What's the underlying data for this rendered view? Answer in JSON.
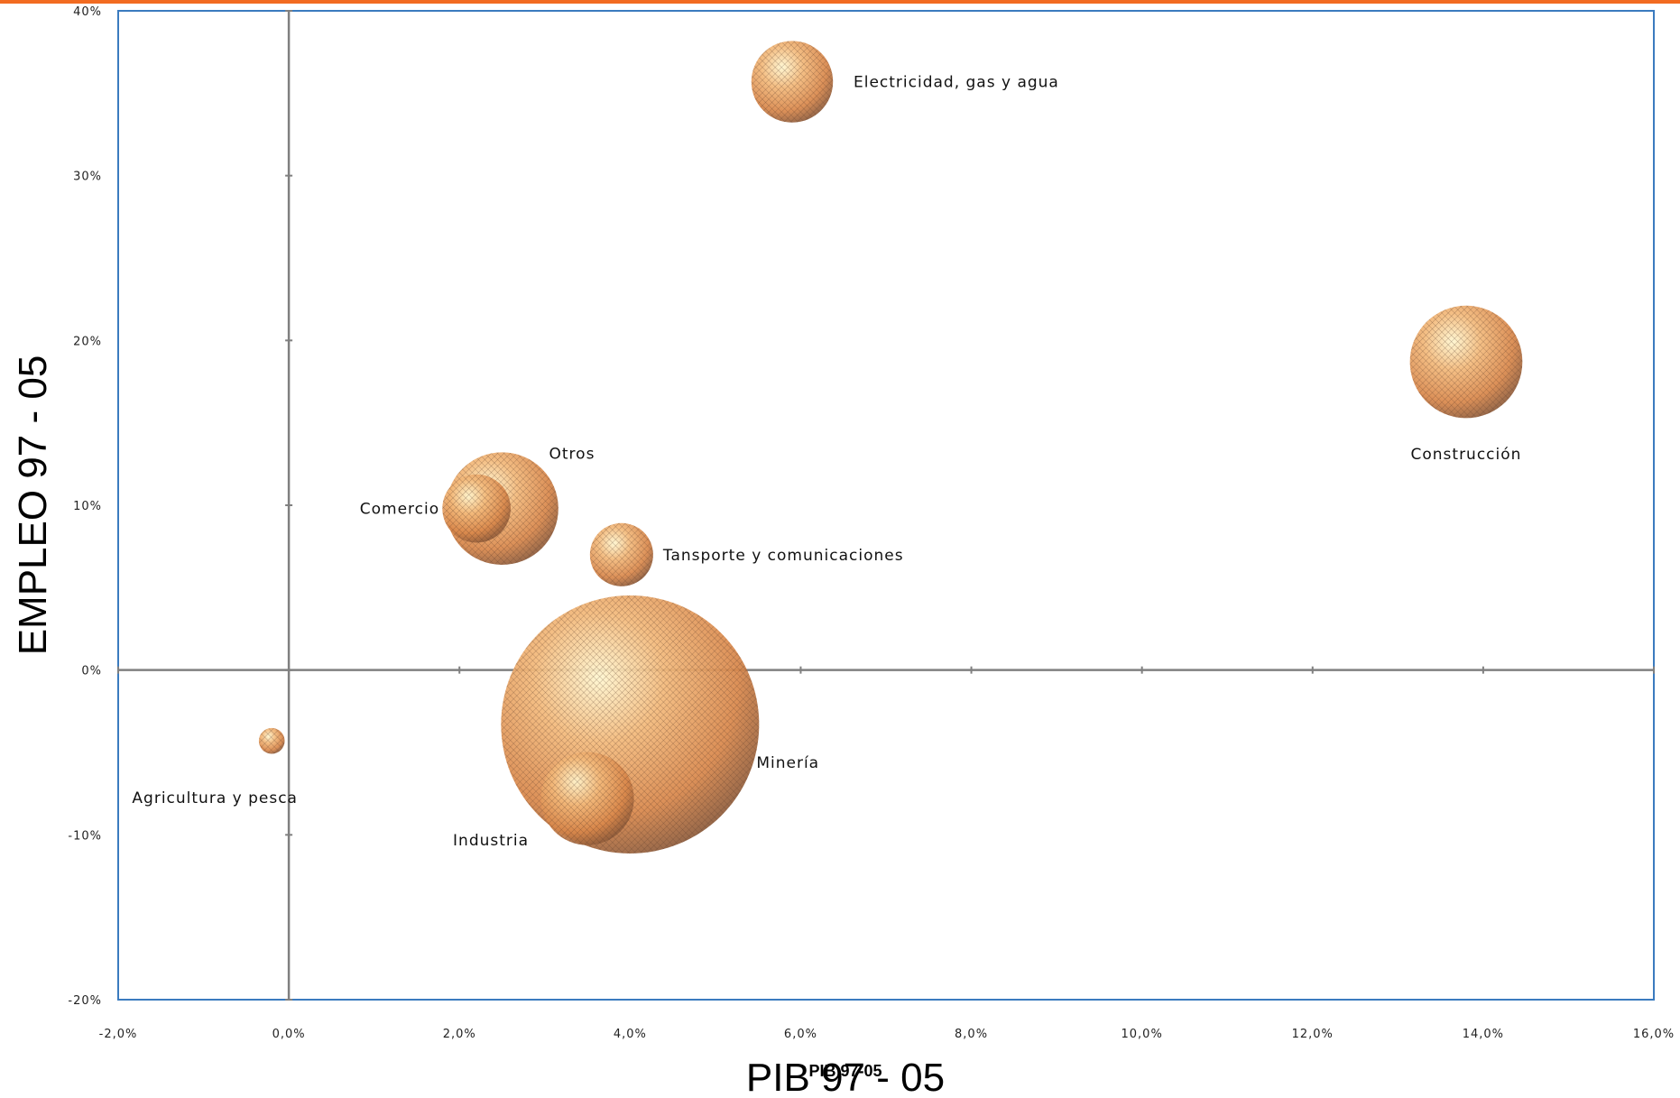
{
  "accent_color": "#f26b21",
  "chart_data": {
    "type": "scatter",
    "subtype": "bubble",
    "xlabel": "PIB 97 - 05",
    "xlabel_small": "PIB 97-05",
    "ylabel": "EMPLEO 97 - 05",
    "xlim": [
      -2.0,
      16.0
    ],
    "ylim": [
      -20,
      40
    ],
    "x_ticks": [
      "-2,0%",
      "0,0%",
      "2,0%",
      "4,0%",
      "6,0%",
      "8,0%",
      "10,0%",
      "12,0%",
      "14,0%",
      "16,0%"
    ],
    "y_ticks": [
      "40%",
      "30%",
      "20%",
      "10%",
      "0%",
      "-10%",
      "-20%"
    ],
    "grid": false,
    "legend": "none",
    "plot_border_color": "#3b7bbf",
    "axis_line_color": "#808080",
    "bubble_color": "#e8893a",
    "points": [
      {
        "label": "Minería",
        "x": 4.0,
        "y": -3.3,
        "size": 100
      },
      {
        "label": "Industria",
        "x": 3.5,
        "y": -7.8,
        "size": 13
      },
      {
        "label": "Agricultura y pesca",
        "x": -0.2,
        "y": -4.3,
        "size": 1
      },
      {
        "label": "Comercio",
        "x": 2.2,
        "y": 9.8,
        "size": 7
      },
      {
        "label": "Otros",
        "x": 2.5,
        "y": 9.8,
        "size": 19
      },
      {
        "label": "Tansporte y comunicaciones",
        "x": 3.9,
        "y": 7.0,
        "size": 6
      },
      {
        "label": "Electricidad, gas y agua",
        "x": 5.9,
        "y": 35.7,
        "size": 10
      },
      {
        "label": "Construcción",
        "x": 13.8,
        "y": 18.7,
        "size": 19
      }
    ]
  }
}
